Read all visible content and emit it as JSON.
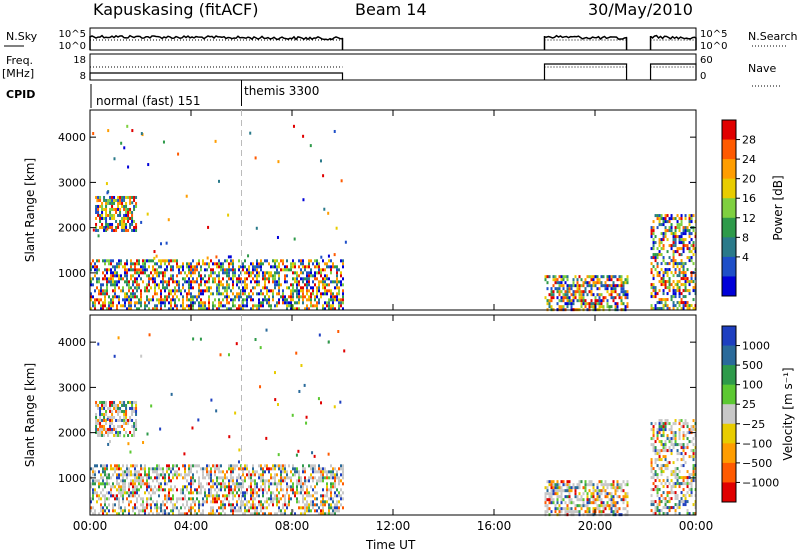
{
  "header": {
    "station": "Kapuskasing (fitACF)",
    "beam": "Beam 14",
    "date": "30/May/2010"
  },
  "left_labels": {
    "nsky": "N.Sky",
    "freq": "Freq.",
    "freq_unit": "[MHz]",
    "cpid": "CPID"
  },
  "right_labels": {
    "nsearch": "N.Search",
    "nave": "Nave"
  },
  "mode_labels": {
    "first": "normal (fast) 151",
    "second": "themis 3300"
  },
  "x_axis_label": "Time UT",
  "chart_data": [
    {
      "type": "line",
      "id": "noise-panel",
      "left_axis": {
        "label": "N.Sky",
        "ticks": [
          "10^5",
          "10^0"
        ],
        "scale": "log"
      },
      "right_axis": {
        "label": "N.Search",
        "ticks": [
          "10^5",
          "10^0"
        ],
        "scale": "log"
      },
      "segments_hours": [
        [
          0.0,
          10.0
        ],
        [
          18.0,
          21.25
        ],
        [
          22.2,
          24.0
        ]
      ]
    },
    {
      "type": "line",
      "id": "freq-panel",
      "left_axis": {
        "label": "Freq. [MHz]",
        "ticks": [
          18,
          8
        ],
        "ylim": [
          8,
          18
        ]
      },
      "right_axis": {
        "label": "Nave",
        "ticks": [
          60,
          0
        ],
        "ylim": [
          0,
          60
        ]
      },
      "segments_hours": [
        [
          0.0,
          10.0
        ],
        [
          18.0,
          21.25
        ],
        [
          22.2,
          24.0
        ]
      ],
      "cpid_change_hour": 6.0
    },
    {
      "type": "heatmap",
      "id": "power-panel",
      "ylabel": "Slant Range [km]",
      "ylim": [
        180,
        4600
      ],
      "yticks": [
        1000,
        2000,
        3000,
        4000
      ],
      "xlim": [
        0,
        24
      ],
      "xtick_labels": [
        "00:00",
        "04:00",
        "08:00",
        "12:00",
        "16:00",
        "20:00",
        "00:00"
      ],
      "colorbar": {
        "label": "Power [dB]",
        "ticks": [
          "28",
          "24",
          "20",
          "16",
          "12",
          "8",
          "4"
        ],
        "colors": [
          "#e00000",
          "#ff5a00",
          "#ff9d00",
          "#e8cc00",
          "#7fd040",
          "#2e9a4a",
          "#2a7a8a",
          "#1e4fc8",
          "#0000d8"
        ]
      },
      "scatter_regions": [
        {
          "x": [
            0.0,
            10.0
          ],
          "y": [
            200,
            1300
          ],
          "density": 0.55
        },
        {
          "x": [
            0.2,
            1.8
          ],
          "y": [
            1950,
            2700
          ],
          "density": 0.65
        },
        {
          "x": [
            18.0,
            21.25
          ],
          "y": [
            200,
            950
          ],
          "density": 0.6
        },
        {
          "x": [
            22.2,
            24.0
          ],
          "y": [
            200,
            2300
          ],
          "density": 0.5
        }
      ]
    },
    {
      "type": "heatmap",
      "id": "velocity-panel",
      "ylabel": "Slant Range [km]",
      "ylim": [
        180,
        4600
      ],
      "yticks": [
        1000,
        2000,
        3000,
        4000
      ],
      "xlim": [
        0,
        24
      ],
      "xtick_labels": [
        "00:00",
        "04:00",
        "08:00",
        "12:00",
        "16:00",
        "20:00",
        "00:00"
      ],
      "colorbar": {
        "label": "Velocity [m s⁻¹]",
        "ticks": [
          "1000",
          "500",
          "100",
          "25",
          "−25",
          "−100",
          "−500",
          "−1000"
        ],
        "colors": [
          "#1e3fc0",
          "#2a6a9a",
          "#2e9a4a",
          "#5cc832",
          "#c8c8c8",
          "#e8cc00",
          "#ff9d00",
          "#ff5a00",
          "#e00000"
        ]
      },
      "scatter_regions": [
        {
          "x": [
            0.0,
            10.0
          ],
          "y": [
            200,
            1300
          ],
          "density": 0.55
        },
        {
          "x": [
            0.2,
            1.8
          ],
          "y": [
            1950,
            2700
          ],
          "density": 0.65
        },
        {
          "x": [
            18.0,
            21.25
          ],
          "y": [
            200,
            950
          ],
          "density": 0.6
        },
        {
          "x": [
            22.2,
            24.0
          ],
          "y": [
            200,
            2300
          ],
          "density": 0.5
        }
      ]
    }
  ]
}
